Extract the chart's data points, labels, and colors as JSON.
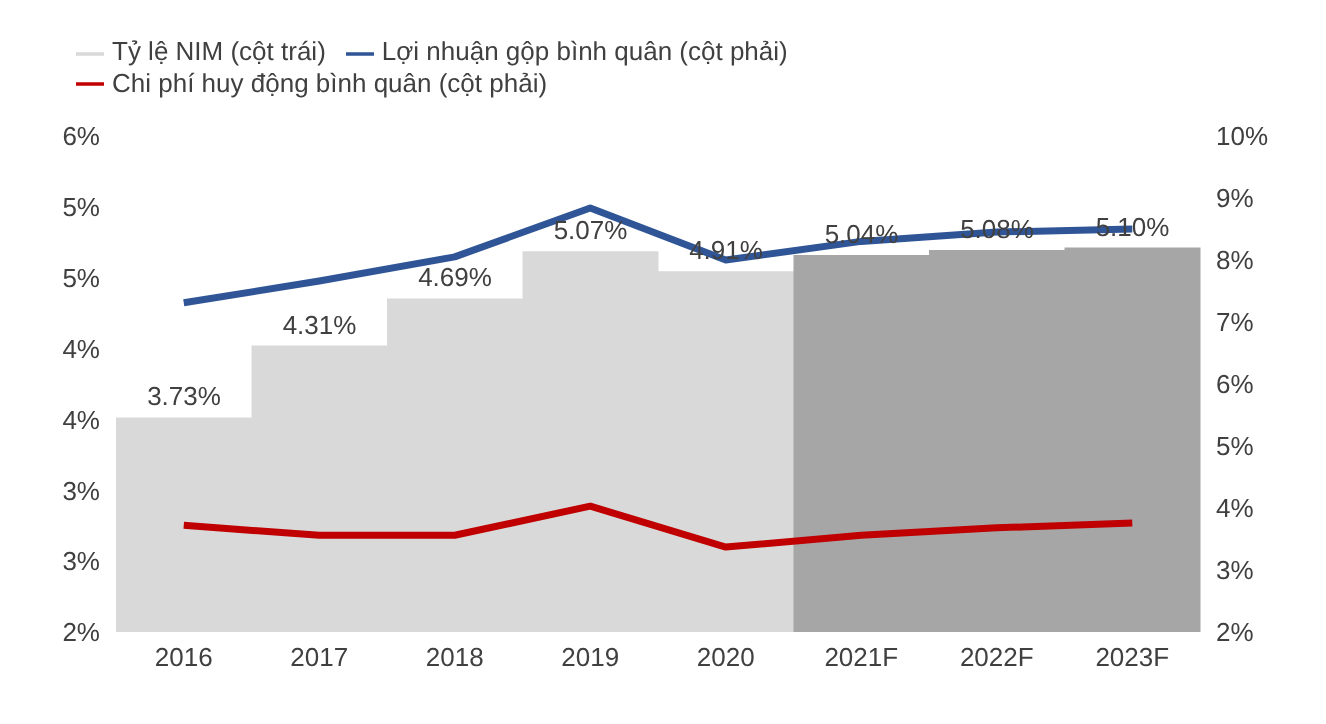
{
  "chart_data": {
    "type": "bar",
    "categories": [
      "2016",
      "2017",
      "2018",
      "2019",
      "2020",
      "2021F",
      "2022F",
      "2023F"
    ],
    "series": [
      {
        "name": "Tỷ lệ NIM (cột trái)",
        "color": "#d9d9d9",
        "colors": [
          "#d9d9d9",
          "#d9d9d9",
          "#d9d9d9",
          "#d9d9d9",
          "#d9d9d9",
          "#a6a6a6",
          "#a6a6a6",
          "#a6a6a6"
        ],
        "values": [
          3.73,
          4.31,
          4.69,
          5.07,
          4.91,
          5.04,
          5.08,
          5.1
        ],
        "value_labels": [
          "3.73%",
          "4.31%",
          "4.69%",
          "5.07%",
          "4.91%",
          "5.04%",
          "5.08%",
          "5.10%"
        ]
      },
      {
        "name": "Lợi nhuận gộp bình quân (cột phải)",
        "type": "line",
        "axis": "y2",
        "color": "#2f5597",
        "values": [
          7.31,
          7.66,
          8.05,
          8.84,
          8.0,
          8.3,
          8.45,
          8.5
        ]
      },
      {
        "name": "Chi phí huy động bình quân (cột phải)",
        "type": "line",
        "axis": "y2",
        "color": "#c00000",
        "values": [
          3.72,
          3.56,
          3.56,
          4.03,
          3.37,
          3.56,
          3.68,
          3.76
        ]
      }
    ],
    "ylim": [
      2,
      6
    ],
    "yticks": [
      {
        "value": 2,
        "label": "2%"
      },
      {
        "value": 2.5714,
        "label": "3%"
      },
      {
        "value": 3.1429,
        "label": "3%"
      },
      {
        "value": 3.7143,
        "label": "4%"
      },
      {
        "value": 4.2857,
        "label": "4%"
      },
      {
        "value": 4.8571,
        "label": "5%"
      },
      {
        "value": 5.4286,
        "label": "5%"
      },
      {
        "value": 6,
        "label": "6%"
      }
    ],
    "y2lim": [
      2,
      10
    ],
    "y2ticks": [
      {
        "value": 2,
        "label": "2%"
      },
      {
        "value": 3,
        "label": "3%"
      },
      {
        "value": 4,
        "label": "4%"
      },
      {
        "value": 5,
        "label": "5%"
      },
      {
        "value": 6,
        "label": "6%"
      },
      {
        "value": 7,
        "label": "7%"
      },
      {
        "value": 8,
        "label": "8%"
      },
      {
        "value": 9,
        "label": "9%"
      },
      {
        "value": 10,
        "label": "10%"
      }
    ],
    "legend": "top left",
    "grid": false,
    "marker": "none",
    "line_style": "solid"
  }
}
